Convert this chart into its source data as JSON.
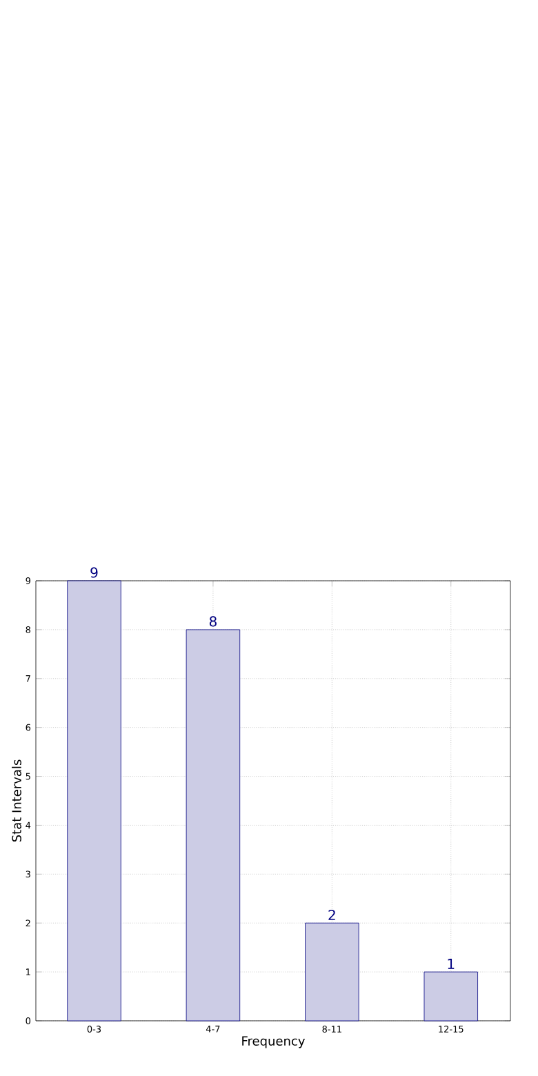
{
  "chart_data": {
    "type": "bar",
    "xlabel": "Frequency",
    "ylabel": "Stat Intervals",
    "categories": [
      "0-3",
      "4-7",
      "8-11",
      "12-15"
    ],
    "values": [
      9,
      8,
      2,
      1
    ],
    "color": "#ccccE5",
    "ylim": [
      0,
      9
    ],
    "yticks": [
      0,
      1,
      2,
      3,
      4,
      5,
      6,
      7,
      8,
      9
    ],
    "grid": true,
    "data_labels": true
  }
}
